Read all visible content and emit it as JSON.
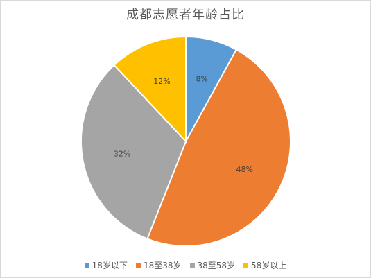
{
  "chart_data": {
    "type": "pie",
    "title": "成都志愿者年龄占比",
    "categories": [
      "18岁以下",
      "18至38岁",
      "38至58岁",
      "58岁以上"
    ],
    "values": [
      8,
      48,
      32,
      12
    ],
    "labels": [
      "8%",
      "48%",
      "32%",
      "12%"
    ],
    "colors": [
      "#5B9BD5",
      "#ED7D31",
      "#A5A5A5",
      "#FFC000"
    ],
    "legend_position": "bottom"
  }
}
